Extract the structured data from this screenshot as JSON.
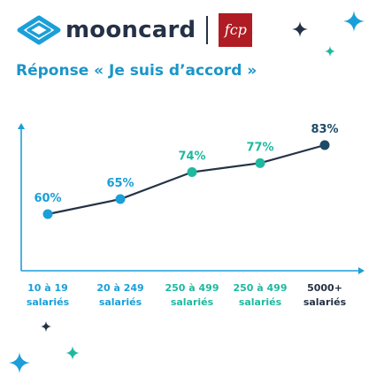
{
  "header": {
    "brand_name": "mooncard",
    "partner_logo_text": "fcp"
  },
  "colors": {
    "navy": "#253246",
    "teal": "#1fb8a0",
    "blue": "#1a9fd9",
    "dark_point": "#1d4a66",
    "title": "#1b95c9",
    "line": "#253246"
  },
  "chart_data": {
    "type": "line",
    "title": "Réponse « Je suis d’accord »",
    "categories": [
      [
        "10 à 19",
        "salariés"
      ],
      [
        "20 à 249",
        "salariés"
      ],
      [
        "250 à 499",
        "salariés"
      ],
      [
        "250 à 499",
        "salariés"
      ],
      [
        "5000+",
        "salariés"
      ]
    ],
    "values": [
      60,
      65,
      74,
      77,
      83
    ],
    "value_labels": [
      "60%",
      "65%",
      "74%",
      "77%",
      "83%"
    ],
    "point_colors": [
      "#1a9fd9",
      "#1a9fd9",
      "#1fb8a0",
      "#1fb8a0",
      "#1d4a66"
    ],
    "label_colors": [
      "#1a9fd9",
      "#1a9fd9",
      "#1fb8a0",
      "#1fb8a0",
      "#1d4a66"
    ],
    "category_colors": [
      "#1a9fd9",
      "#1a9fd9",
      "#1fb8a0",
      "#1fb8a0",
      "#253246"
    ],
    "ylim": [
      40,
      100
    ],
    "grid": false,
    "legend": "none"
  },
  "decorations": {
    "sparkles": [
      "sparkle-icon",
      "sparkle-icon",
      "sparkle-icon",
      "sparkle-icon",
      "sparkle-icon",
      "sparkle-icon"
    ]
  }
}
